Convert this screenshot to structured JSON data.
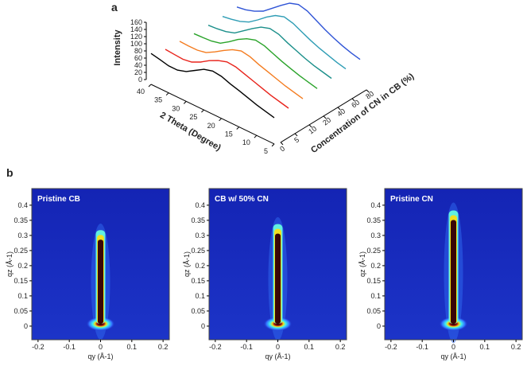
{
  "chart_data": [
    {
      "type": "waterfall",
      "panel": "a",
      "ylabel": "Intensity",
      "xlabel": "2 Theta (Degree)",
      "zlabel": "Concentration of CN in CB (%)",
      "x": [
        40,
        37.5,
        35,
        32.5,
        30,
        27.5,
        25,
        22.5,
        20,
        17.5,
        15,
        12.5,
        10,
        7.5,
        5
      ],
      "xticks": [
        40,
        35,
        30,
        25,
        20,
        15,
        10,
        5
      ],
      "ylim": [
        0,
        160
      ],
      "yticks": [
        0,
        20,
        40,
        60,
        80,
        100,
        120,
        140,
        160
      ],
      "categories": [
        0,
        5,
        10,
        20,
        40,
        60,
        80
      ],
      "series": [
        {
          "color": "#000000",
          "values": [
            73,
            68,
            62,
            62,
            70,
            85,
            100,
            107,
            104,
            95,
            88,
            80,
            72,
            66,
            60
          ]
        },
        {
          "color": "#e8231b",
          "values": [
            60,
            58,
            56,
            60,
            72,
            88,
            100,
            108,
            106,
            98,
            90,
            82,
            74,
            68,
            62
          ]
        },
        {
          "color": "#f47c20",
          "values": [
            58,
            57,
            57,
            62,
            76,
            92,
            106,
            114,
            110,
            100,
            92,
            84,
            76,
            70,
            64
          ]
        },
        {
          "color": "#2aa32a",
          "values": [
            55,
            56,
            58,
            64,
            80,
            98,
            112,
            120,
            116,
            106,
            96,
            88,
            80,
            74,
            68
          ]
        },
        {
          "color": "#1b8f8a",
          "values": [
            54,
            56,
            60,
            68,
            86,
            104,
            120,
            128,
            124,
            112,
            102,
            92,
            84,
            78,
            72
          ]
        },
        {
          "color": "#2f9db5",
          "values": [
            54,
            58,
            64,
            74,
            92,
            112,
            128,
            136,
            130,
            118,
            106,
            96,
            88,
            80,
            74
          ]
        },
        {
          "color": "#2f54d6",
          "values": [
            56,
            60,
            68,
            80,
            100,
            120,
            138,
            146,
            140,
            126,
            112,
            100,
            90,
            82,
            76
          ]
        }
      ]
    },
    {
      "type": "heatmap",
      "panel": "b",
      "title": "Pristine CB",
      "xlabel": "qy (Å-1)",
      "ylabel": "qz (Å-1)",
      "xlim": [
        -0.22,
        0.22
      ],
      "xticks": [
        -0.2,
        -0.1,
        0,
        0.1,
        0.2
      ],
      "ylim": [
        -0.045,
        0.455
      ],
      "yticks": [
        0,
        0.05,
        0.1,
        0.15,
        0.2,
        0.25,
        0.3,
        0.35,
        0.4
      ]
    },
    {
      "type": "heatmap",
      "title": "CB w/ 50% CN",
      "xlabel": "qy (Å-1)",
      "ylabel": "qz (Å-1)",
      "xlim": [
        -0.22,
        0.22
      ],
      "xticks": [
        -0.2,
        -0.1,
        0,
        0.1,
        0.2
      ],
      "ylim": [
        -0.045,
        0.455
      ],
      "yticks": [
        0,
        0.05,
        0.1,
        0.15,
        0.2,
        0.25,
        0.3,
        0.35,
        0.4
      ]
    },
    {
      "type": "heatmap",
      "title": "Pristine CN",
      "xlabel": "qy (Å-1)",
      "ylabel": "qz (Å-1)",
      "xlim": [
        -0.22,
        0.22
      ],
      "xticks": [
        -0.2,
        -0.1,
        0,
        0.1,
        0.2
      ],
      "ylim": [
        -0.045,
        0.455
      ],
      "yticks": [
        0,
        0.05,
        0.1,
        0.15,
        0.2,
        0.25,
        0.3,
        0.35,
        0.4
      ]
    }
  ]
}
